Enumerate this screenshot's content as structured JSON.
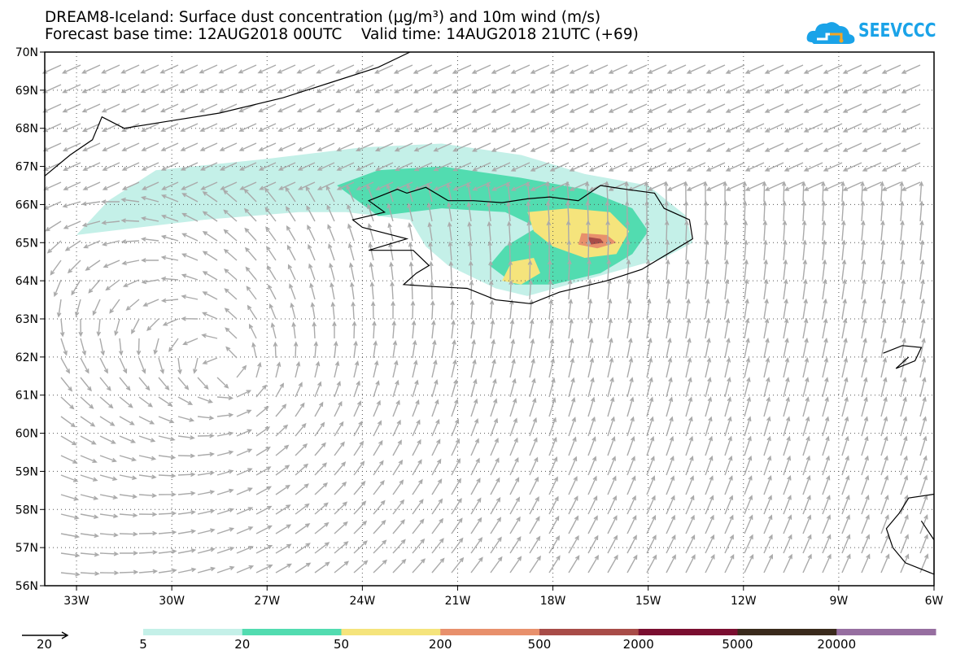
{
  "title": {
    "line1": "DREAM8-Iceland: Surface dust concentration (μg/m³) and 10m wind (m/s)",
    "line2": "Forecast base time: 12AUG2018 00UTC    Valid time: 14AUG2018 21UTC (+69)"
  },
  "logo": {
    "text": "SEEVCCC",
    "color": "#1aa3e8",
    "icon": "cloud-icon"
  },
  "map": {
    "lon_range": [
      -34.0,
      -6.0
    ],
    "lat_range": [
      56.0,
      70.0
    ],
    "lon_ticks": [
      {
        "value": -33,
        "label": "33W"
      },
      {
        "value": -30,
        "label": "30W"
      },
      {
        "value": -27,
        "label": "27W"
      },
      {
        "value": -24,
        "label": "24W"
      },
      {
        "value": -21,
        "label": "21W"
      },
      {
        "value": -18,
        "label": "18W"
      },
      {
        "value": -15,
        "label": "15W"
      },
      {
        "value": -12,
        "label": "12W"
      },
      {
        "value": -9,
        "label": "9W"
      },
      {
        "value": -6,
        "label": "6W"
      }
    ],
    "lat_ticks": [
      {
        "value": 56,
        "label": "56N"
      },
      {
        "value": 57,
        "label": "57N"
      },
      {
        "value": 58,
        "label": "58N"
      },
      {
        "value": 59,
        "label": "59N"
      },
      {
        "value": 60,
        "label": "60N"
      },
      {
        "value": 61,
        "label": "61N"
      },
      {
        "value": 62,
        "label": "62N"
      },
      {
        "value": 63,
        "label": "63N"
      },
      {
        "value": 64,
        "label": "64N"
      },
      {
        "value": 65,
        "label": "65N"
      },
      {
        "value": 66,
        "label": "66N"
      },
      {
        "value": 67,
        "label": "67N"
      },
      {
        "value": 68,
        "label": "68N"
      },
      {
        "value": 69,
        "label": "69N"
      },
      {
        "value": 70,
        "label": "70N"
      }
    ],
    "gridlines": "dotted",
    "wind_vector_color": "#aaaaaa",
    "coastline_color": "#000000"
  },
  "dust_concentration": {
    "levels": [
      {
        "threshold": 5,
        "color": "#c4f0e8"
      },
      {
        "threshold": 20,
        "color": "#52dcb0"
      },
      {
        "threshold": 50,
        "color": "#f5e47c"
      },
      {
        "threshold": 200,
        "color": "#e8906c"
      },
      {
        "threshold": 500,
        "color": "#a84c48"
      },
      {
        "threshold": 2000,
        "color": "#7a0e30"
      },
      {
        "threshold": 5000,
        "color": "#3a2a1c"
      },
      {
        "threshold": 20000,
        "color": "#966ea0"
      }
    ],
    "legend_labels": [
      "5",
      "20",
      "50",
      "200",
      "500",
      "2000",
      "5000",
      "20000"
    ]
  },
  "wind_reference": {
    "speed": 20,
    "label": "20"
  }
}
